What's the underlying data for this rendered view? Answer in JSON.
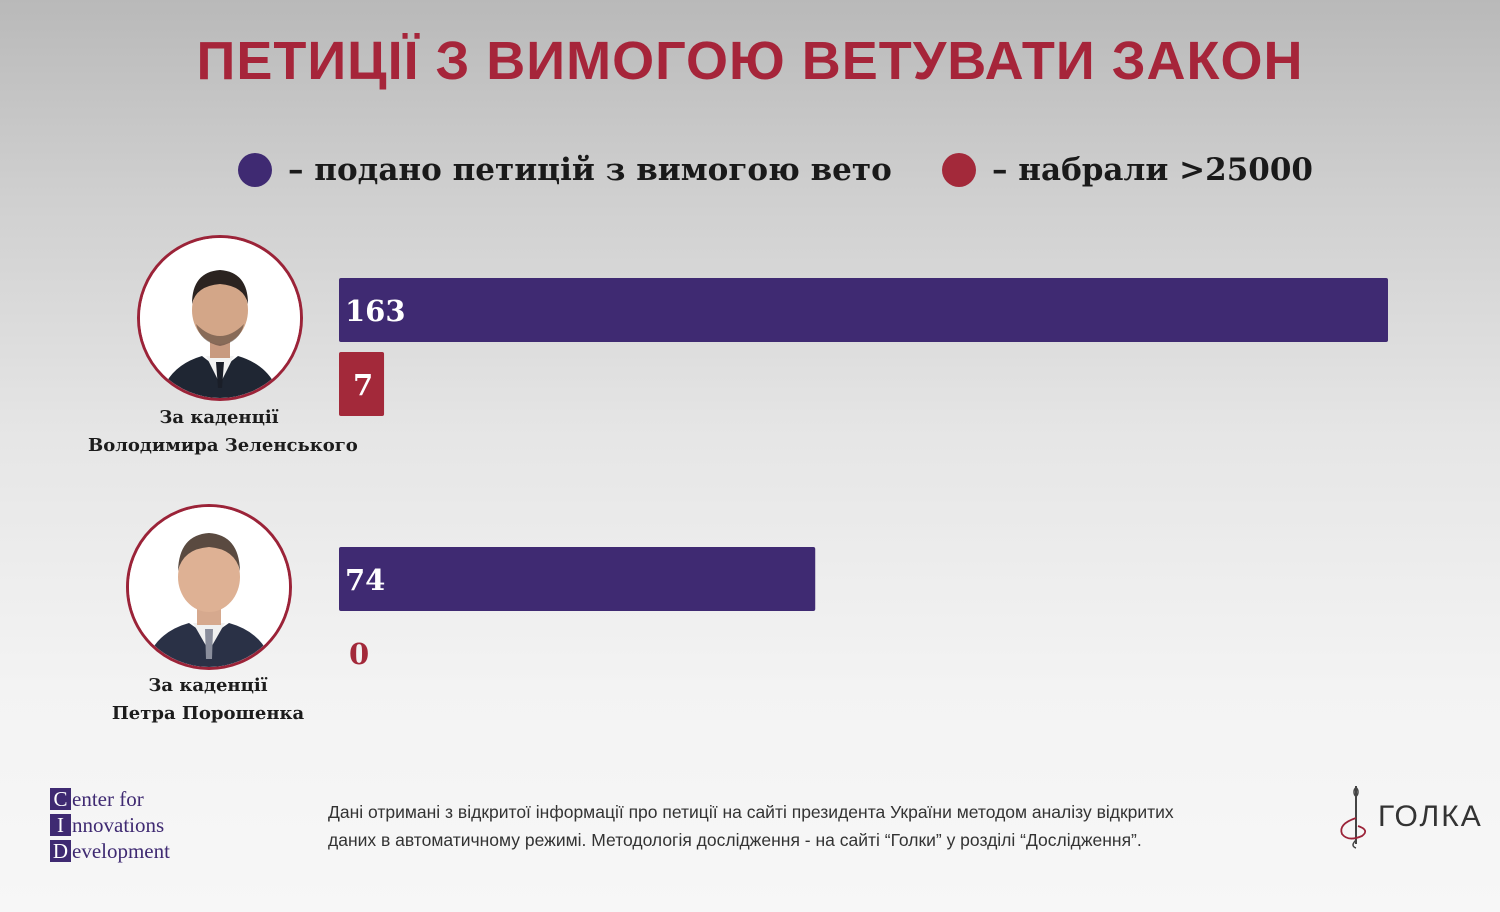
{
  "title": "ПЕТИЦІЇ З ВИМОГОЮ ВЕТУВАТИ ЗАКОН",
  "colors": {
    "submitted": "#3f2a72",
    "over_25000": "#a3293a",
    "title": "#a6253a"
  },
  "legend": {
    "submitted_label": "– подано петицій з вимогою вето",
    "over_label": "– набрали >25000"
  },
  "presidents": [
    {
      "caption_line1": "За каденції",
      "caption_line2": "Володимира Зеленського"
    },
    {
      "caption_line1": "За каденції",
      "caption_line2": "Петра Порошенка"
    }
  ],
  "chart_data": {
    "type": "bar",
    "orientation": "horizontal",
    "categories": [
      "За каденції Володимира Зеленського",
      "За каденції Петра Порошенка"
    ],
    "series": [
      {
        "name": "подано петицій з вимогою вето",
        "color": "#3f2a72",
        "values": [
          163,
          74
        ]
      },
      {
        "name": "набрали >25000",
        "color": "#a3293a",
        "values": [
          7,
          0
        ]
      }
    ],
    "legend": "top",
    "grid": false
  },
  "footer": {
    "org_initials": [
      "C",
      "I",
      "D"
    ],
    "org_words": [
      "enter for",
      "nnovations",
      "evelopment"
    ],
    "note_line1": "Дані отримані з відкритої інформації про петиції на сайті президента України методом аналізу відкритих",
    "note_line2": "даних в автоматичному режимі. Методологія дослідження - на сайті “Голки” у розділі “Дослідження”.",
    "brand": "ГОЛКА"
  }
}
